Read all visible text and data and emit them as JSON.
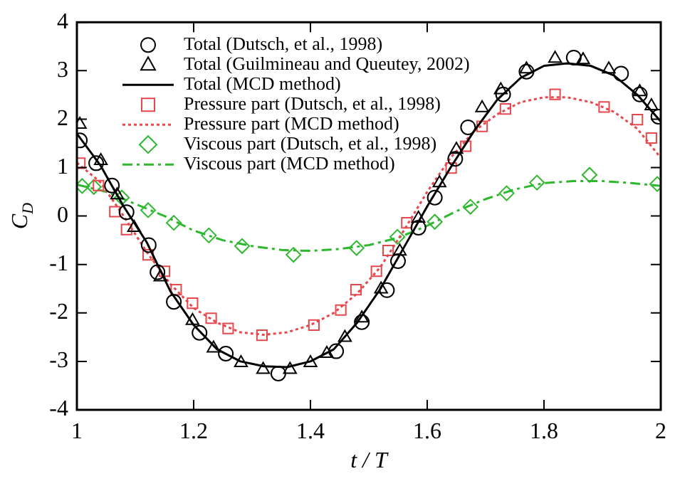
{
  "chart_data": {
    "type": "scatter",
    "xlabel": "t / T",
    "ylabel": "C$_{D}$",
    "xlim": [
      1,
      2
    ],
    "ylim": [
      -4,
      4
    ],
    "xticks": [
      1,
      1.2,
      1.4,
      1.6,
      1.8,
      2
    ],
    "yticks": [
      -4,
      -3,
      -2,
      -1,
      0,
      1,
      2,
      3,
      4
    ],
    "grid": false,
    "legend": "top left",
    "series": [
      {
        "name": "Total (Dutsch, et al., 1998)",
        "type": "scatter",
        "marker": "circle",
        "color": "#000000",
        "x": [
          1.005,
          1.033,
          1.06,
          1.085,
          1.123,
          1.138,
          1.166,
          1.21,
          1.255,
          1.345,
          1.444,
          1.488,
          1.531,
          1.55,
          1.585,
          1.613,
          1.648,
          1.67,
          1.73,
          1.77,
          1.851,
          1.932,
          1.964,
          1.996
        ],
        "values": [
          1.56,
          1.09,
          0.63,
          0.08,
          -0.6,
          -1.16,
          -1.77,
          -2.41,
          -2.84,
          -3.25,
          -2.79,
          -2.19,
          -1.53,
          -0.93,
          -0.24,
          0.38,
          1.18,
          1.83,
          2.51,
          2.98,
          3.27,
          2.94,
          2.51,
          2.05
        ]
      },
      {
        "name": "Total (Guilmineau and Queutey, 2002)",
        "type": "scatter",
        "marker": "triangle",
        "color": "#000000",
        "x": [
          1.005,
          1.041,
          1.069,
          1.098,
          1.143,
          1.198,
          1.234,
          1.281,
          1.319,
          1.365,
          1.4,
          1.428,
          1.459,
          1.488,
          1.521,
          1.553,
          1.585,
          1.621,
          1.65,
          1.694,
          1.726,
          1.77,
          1.819,
          1.867,
          1.911,
          1.964,
          1.984
        ],
        "values": [
          1.89,
          1.14,
          0.43,
          -0.24,
          -1.26,
          -2.16,
          -2.73,
          -3.03,
          -3.17,
          -3.17,
          -3.03,
          -2.84,
          -2.51,
          -2.11,
          -1.51,
          -0.73,
          -0.05,
          0.68,
          1.37,
          2.23,
          2.6,
          3.03,
          3.25,
          3.22,
          3.03,
          2.56,
          2.27
        ]
      },
      {
        "name": "Total (MCD method)",
        "type": "line",
        "marker": "none",
        "line_style": "solid",
        "color": "#000000",
        "x": [
          1,
          1.04,
          1.08,
          1.12,
          1.16,
          1.2,
          1.24,
          1.28,
          1.32,
          1.36,
          1.4,
          1.44,
          1.48,
          1.52,
          1.56,
          1.6,
          1.64,
          1.68,
          1.72,
          1.76,
          1.8,
          1.84,
          1.88,
          1.92,
          1.96,
          2
        ],
        "values": [
          1.7,
          1.05,
          0.2,
          -0.55,
          -1.55,
          -2.25,
          -2.75,
          -3,
          -3.1,
          -3.12,
          -3,
          -2.75,
          -2.2,
          -1.5,
          -0.65,
          0.2,
          1,
          1.75,
          2.4,
          2.85,
          3.1,
          3.15,
          3.1,
          2.9,
          2.5,
          1.95
        ]
      },
      {
        "name": "Pressure part (Dutsch, et al., 1998)",
        "type": "scatter",
        "marker": "square",
        "color": "#e8474c",
        "x": [
          1.005,
          1.037,
          1.065,
          1.085,
          1.122,
          1.15,
          1.17,
          1.198,
          1.23,
          1.259,
          1.317,
          1.406,
          1.452,
          1.478,
          1.513,
          1.533,
          1.565,
          1.641,
          1.666,
          1.694,
          1.734,
          1.819,
          1.903,
          1.96,
          1.984
        ],
        "values": [
          1.09,
          0.63,
          0.09,
          -0.28,
          -0.8,
          -1.14,
          -1.52,
          -1.8,
          -2.11,
          -2.32,
          -2.46,
          -2.25,
          -1.94,
          -1.52,
          -1.14,
          -0.71,
          -0.14,
          0.99,
          1.44,
          1.85,
          2.21,
          2.51,
          2.25,
          1.99,
          1.61
        ]
      },
      {
        "name": "Pressure part (MCD method)",
        "type": "line",
        "marker": "none",
        "line_style": "dotted",
        "color": "#e8474c",
        "x": [
          1,
          1.04,
          1.08,
          1.12,
          1.16,
          1.2,
          1.24,
          1.28,
          1.32,
          1.36,
          1.4,
          1.44,
          1.48,
          1.52,
          1.56,
          1.6,
          1.64,
          1.68,
          1.72,
          1.76,
          1.8,
          1.84,
          1.88,
          1.92,
          1.96,
          2
        ],
        "values": [
          1.1,
          0.7,
          0,
          -0.75,
          -1.4,
          -1.9,
          -2.2,
          -2.4,
          -2.45,
          -2.4,
          -2.25,
          -2,
          -1.6,
          -1.05,
          -0.3,
          0.5,
          1.2,
          1.75,
          2.1,
          2.35,
          2.45,
          2.45,
          2.35,
          2.15,
          1.8,
          1.2
        ]
      },
      {
        "name": "Viscous part (Dutsch, et al., 1998)",
        "type": "scatter",
        "marker": "diamond",
        "color": "#2eb82e",
        "x": [
          1.009,
          1.029,
          1.077,
          1.122,
          1.166,
          1.226,
          1.283,
          1.371,
          1.479,
          1.549,
          1.613,
          1.674,
          1.736,
          1.788,
          1.878,
          1.994
        ],
        "values": [
          0.62,
          0.6,
          0.38,
          0.12,
          -0.14,
          -0.4,
          -0.62,
          -0.8,
          -0.66,
          -0.43,
          -0.12,
          0.19,
          0.47,
          0.69,
          0.85,
          0.66
        ]
      },
      {
        "name": "Viscous part (MCD method)",
        "type": "line",
        "marker": "none",
        "line_style": "dashed",
        "color": "#2eb82e",
        "x": [
          1,
          1.05,
          1.1,
          1.15,
          1.2,
          1.25,
          1.3,
          1.35,
          1.4,
          1.45,
          1.5,
          1.55,
          1.6,
          1.65,
          1.7,
          1.75,
          1.8,
          1.85,
          1.9,
          1.95,
          2
        ],
        "values": [
          0.65,
          0.5,
          0.25,
          0,
          -0.3,
          -0.5,
          -0.62,
          -0.7,
          -0.72,
          -0.68,
          -0.6,
          -0.45,
          -0.2,
          0.1,
          0.35,
          0.55,
          0.68,
          0.72,
          0.72,
          0.68,
          0.62
        ]
      }
    ]
  }
}
